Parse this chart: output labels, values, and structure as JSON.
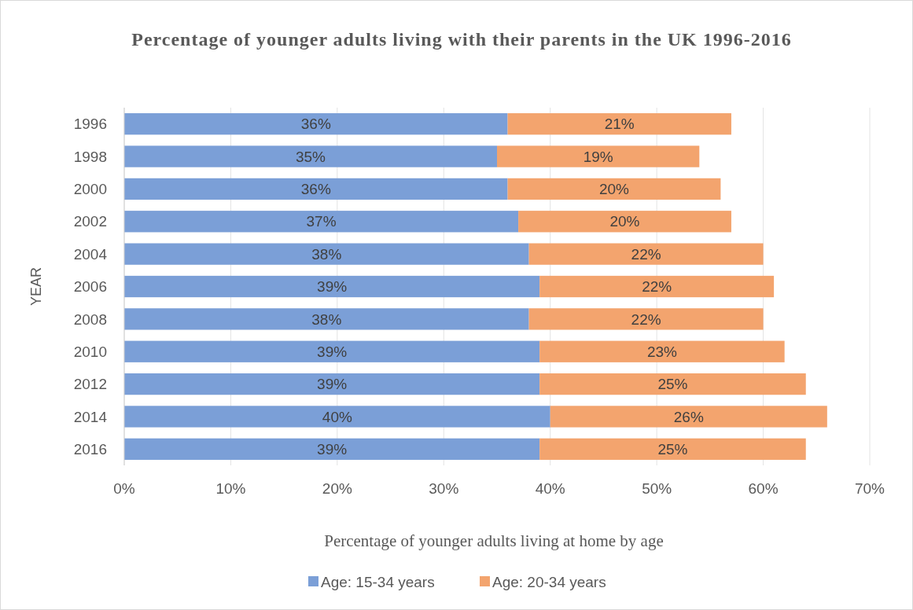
{
  "chart_data": {
    "type": "bar",
    "orientation": "horizontal",
    "stacked": true,
    "title": "Percentage of younger adults living with their parents in the UK 1996-2016",
    "xlabel": "Percentage of younger adults living at home by age",
    "ylabel": "YEAR",
    "categories": [
      "1996",
      "1998",
      "2000",
      "2002",
      "2004",
      "2006",
      "2008",
      "2010",
      "2012",
      "2014",
      "2016"
    ],
    "series": [
      {
        "name": "Age: 15-34 years",
        "color": "#7b9fd7",
        "values": [
          36,
          35,
          36,
          37,
          38,
          39,
          38,
          39,
          39,
          40,
          39
        ],
        "value_labels": [
          "36%",
          "35%",
          "36%",
          "37%",
          "38%",
          "39%",
          "38%",
          "39%",
          "39%",
          "40%",
          "39%"
        ]
      },
      {
        "name": "Age: 20-34 years",
        "color": "#f3a46e",
        "values": [
          21,
          19,
          20,
          20,
          22,
          22,
          22,
          23,
          25,
          26,
          25
        ],
        "value_labels": [
          "21%",
          "19%",
          "20%",
          "20%",
          "22%",
          "22%",
          "22%",
          "23%",
          "25%",
          "26%",
          "25%"
        ]
      }
    ],
    "xlim": [
      0,
      70
    ],
    "xticks": [
      {
        "value": 0,
        "label": "0%"
      },
      {
        "value": 10,
        "label": "10%"
      },
      {
        "value": 20,
        "label": "20%"
      },
      {
        "value": 30,
        "label": "30%"
      },
      {
        "value": 40,
        "label": "40%"
      },
      {
        "value": 50,
        "label": "50%"
      },
      {
        "value": 60,
        "label": "60%"
      },
      {
        "value": 70,
        "label": "70%"
      }
    ],
    "grid": "x",
    "legend": "bottom"
  }
}
